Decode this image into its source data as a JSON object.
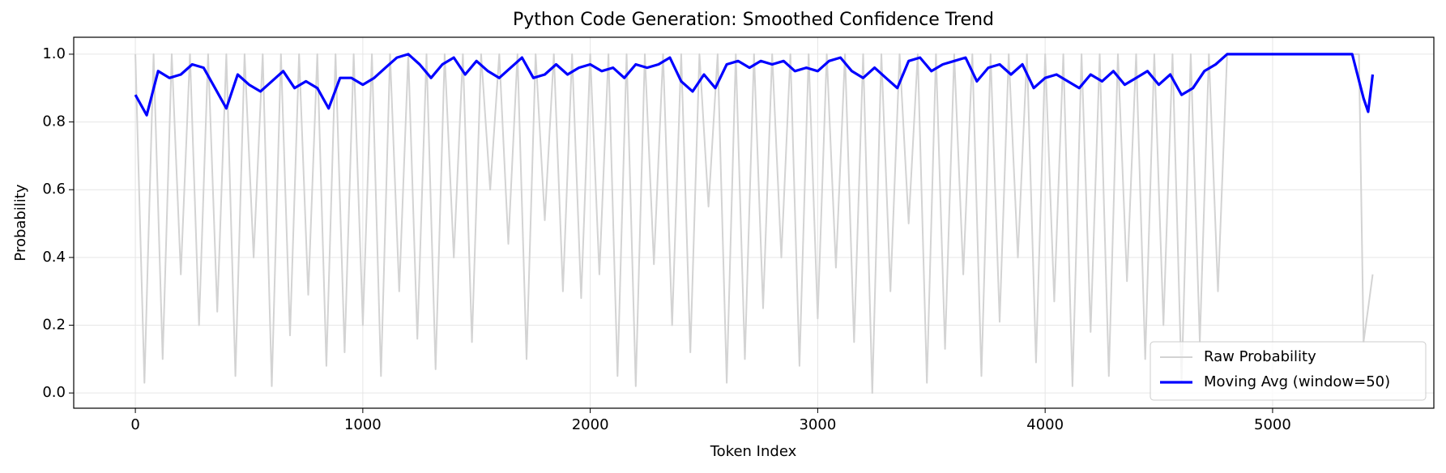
{
  "chart_data": {
    "type": "line",
    "title": "Python Code Generation: Smoothed Confidence Trend",
    "x_label": "Token Index",
    "y_label": "Probability",
    "xlim": [
      -271,
      5709
    ],
    "ylim": [
      -0.045,
      1.05
    ],
    "xticks": [
      0,
      1000,
      2000,
      3000,
      4000,
      5000
    ],
    "yticks": [
      {
        "value": 0,
        "label": "0.0"
      },
      {
        "value": 0.2,
        "label": "0.2"
      },
      {
        "value": 0.4,
        "label": "0.4"
      },
      {
        "value": 0.6,
        "label": "0.6"
      },
      {
        "value": 0.8,
        "label": "0.8"
      },
      {
        "value": 1,
        "label": "1.0"
      }
    ],
    "grid": true,
    "legend": "lower right",
    "series": [
      {
        "name": "Raw Probability",
        "color": "#d3d3d3",
        "x": [
          0,
          40,
          80,
          120,
          160,
          200,
          240,
          280,
          320,
          360,
          400,
          440,
          480,
          520,
          560,
          600,
          640,
          680,
          720,
          760,
          800,
          840,
          880,
          920,
          960,
          1000,
          1040,
          1080,
          1120,
          1160,
          1200,
          1240,
          1280,
          1320,
          1360,
          1400,
          1440,
          1480,
          1520,
          1560,
          1600,
          1640,
          1680,
          1720,
          1760,
          1800,
          1840,
          1880,
          1920,
          1960,
          2000,
          2040,
          2080,
          2120,
          2160,
          2200,
          2240,
          2280,
          2320,
          2360,
          2400,
          2440,
          2480,
          2520,
          2560,
          2600,
          2640,
          2680,
          2720,
          2760,
          2800,
          2840,
          2880,
          2920,
          2960,
          3000,
          3040,
          3080,
          3120,
          3160,
          3200,
          3240,
          3280,
          3320,
          3360,
          3400,
          3440,
          3480,
          3520,
          3560,
          3600,
          3640,
          3680,
          3720,
          3760,
          3800,
          3840,
          3880,
          3920,
          3960,
          4000,
          4040,
          4080,
          4120,
          4160,
          4200,
          4240,
          4280,
          4320,
          4360,
          4400,
          4440,
          4480,
          4520,
          4560,
          4600,
          4640,
          4680,
          4720,
          4760,
          4800,
          4900,
          5000,
          5100,
          5200,
          5300,
          5380,
          5400,
          5420,
          5440
        ],
        "values": [
          1,
          0.03,
          1,
          0.1,
          1,
          0.35,
          1,
          0.2,
          1,
          0.24,
          1,
          0.05,
          1,
          0.4,
          1,
          0.02,
          1,
          0.17,
          1,
          0.29,
          1,
          0.08,
          1,
          0.12,
          1,
          0.2,
          1,
          0.05,
          1,
          0.3,
          1,
          0.16,
          1,
          0.07,
          1,
          0.4,
          1,
          0.15,
          1,
          0.6,
          1,
          0.44,
          1,
          0.1,
          1,
          0.51,
          1,
          0.3,
          1,
          0.28,
          1,
          0.35,
          1,
          0.05,
          1,
          0.02,
          1,
          0.38,
          1,
          0.2,
          1,
          0.12,
          1,
          0.55,
          1,
          0.03,
          1,
          0.1,
          1,
          0.25,
          1,
          0.4,
          1,
          0.08,
          1,
          0.22,
          1,
          0.37,
          1,
          0.15,
          1,
          0,
          1,
          0.3,
          1,
          0.5,
          1,
          0.03,
          1,
          0.13,
          1,
          0.35,
          1,
          0.05,
          1,
          0.21,
          1,
          0.4,
          1,
          0.09,
          1,
          0.27,
          1,
          0.02,
          1,
          0.18,
          1,
          0.05,
          1,
          0.33,
          1,
          0.1,
          1,
          0.2,
          1,
          0.03,
          1,
          0.15,
          1,
          0.3,
          1,
          1,
          1,
          1,
          1,
          1,
          1,
          0.15,
          0.25,
          0.35
        ]
      },
      {
        "name": "Moving Avg (window=50)",
        "color": "#0000ff",
        "x": [
          0,
          50,
          100,
          150,
          200,
          250,
          300,
          350,
          400,
          450,
          500,
          550,
          600,
          650,
          700,
          750,
          800,
          850,
          900,
          950,
          1000,
          1050,
          1100,
          1150,
          1200,
          1250,
          1300,
          1350,
          1400,
          1450,
          1500,
          1550,
          1600,
          1650,
          1700,
          1750,
          1800,
          1850,
          1900,
          1950,
          2000,
          2050,
          2100,
          2150,
          2200,
          2250,
          2300,
          2350,
          2400,
          2450,
          2500,
          2550,
          2600,
          2650,
          2700,
          2750,
          2800,
          2850,
          2900,
          2950,
          3000,
          3050,
          3100,
          3150,
          3200,
          3250,
          3300,
          3350,
          3400,
          3450,
          3500,
          3550,
          3600,
          3650,
          3700,
          3750,
          3800,
          3850,
          3900,
          3950,
          4000,
          4050,
          4100,
          4150,
          4200,
          4250,
          4300,
          4350,
          4400,
          4450,
          4500,
          4550,
          4600,
          4650,
          4700,
          4750,
          4800,
          4900,
          5000,
          5100,
          5200,
          5300,
          5350,
          5400,
          5420,
          5440
        ],
        "values": [
          0.88,
          0.82,
          0.95,
          0.93,
          0.94,
          0.97,
          0.96,
          0.9,
          0.84,
          0.94,
          0.91,
          0.89,
          0.92,
          0.95,
          0.9,
          0.92,
          0.9,
          0.84,
          0.93,
          0.93,
          0.91,
          0.93,
          0.96,
          0.99,
          1,
          0.97,
          0.93,
          0.97,
          0.99,
          0.94,
          0.98,
          0.95,
          0.93,
          0.96,
          0.99,
          0.93,
          0.94,
          0.97,
          0.94,
          0.96,
          0.97,
          0.95,
          0.96,
          0.93,
          0.97,
          0.96,
          0.97,
          0.99,
          0.92,
          0.89,
          0.94,
          0.9,
          0.97,
          0.98,
          0.96,
          0.98,
          0.97,
          0.98,
          0.95,
          0.96,
          0.95,
          0.98,
          0.99,
          0.95,
          0.93,
          0.96,
          0.93,
          0.9,
          0.98,
          0.99,
          0.95,
          0.97,
          0.98,
          0.99,
          0.92,
          0.96,
          0.97,
          0.94,
          0.97,
          0.9,
          0.93,
          0.94,
          0.92,
          0.9,
          0.94,
          0.92,
          0.95,
          0.91,
          0.93,
          0.95,
          0.91,
          0.94,
          0.88,
          0.9,
          0.95,
          0.97,
          1,
          1,
          1,
          1,
          1,
          1,
          1,
          0.87,
          0.83,
          0.94
        ]
      }
    ]
  }
}
